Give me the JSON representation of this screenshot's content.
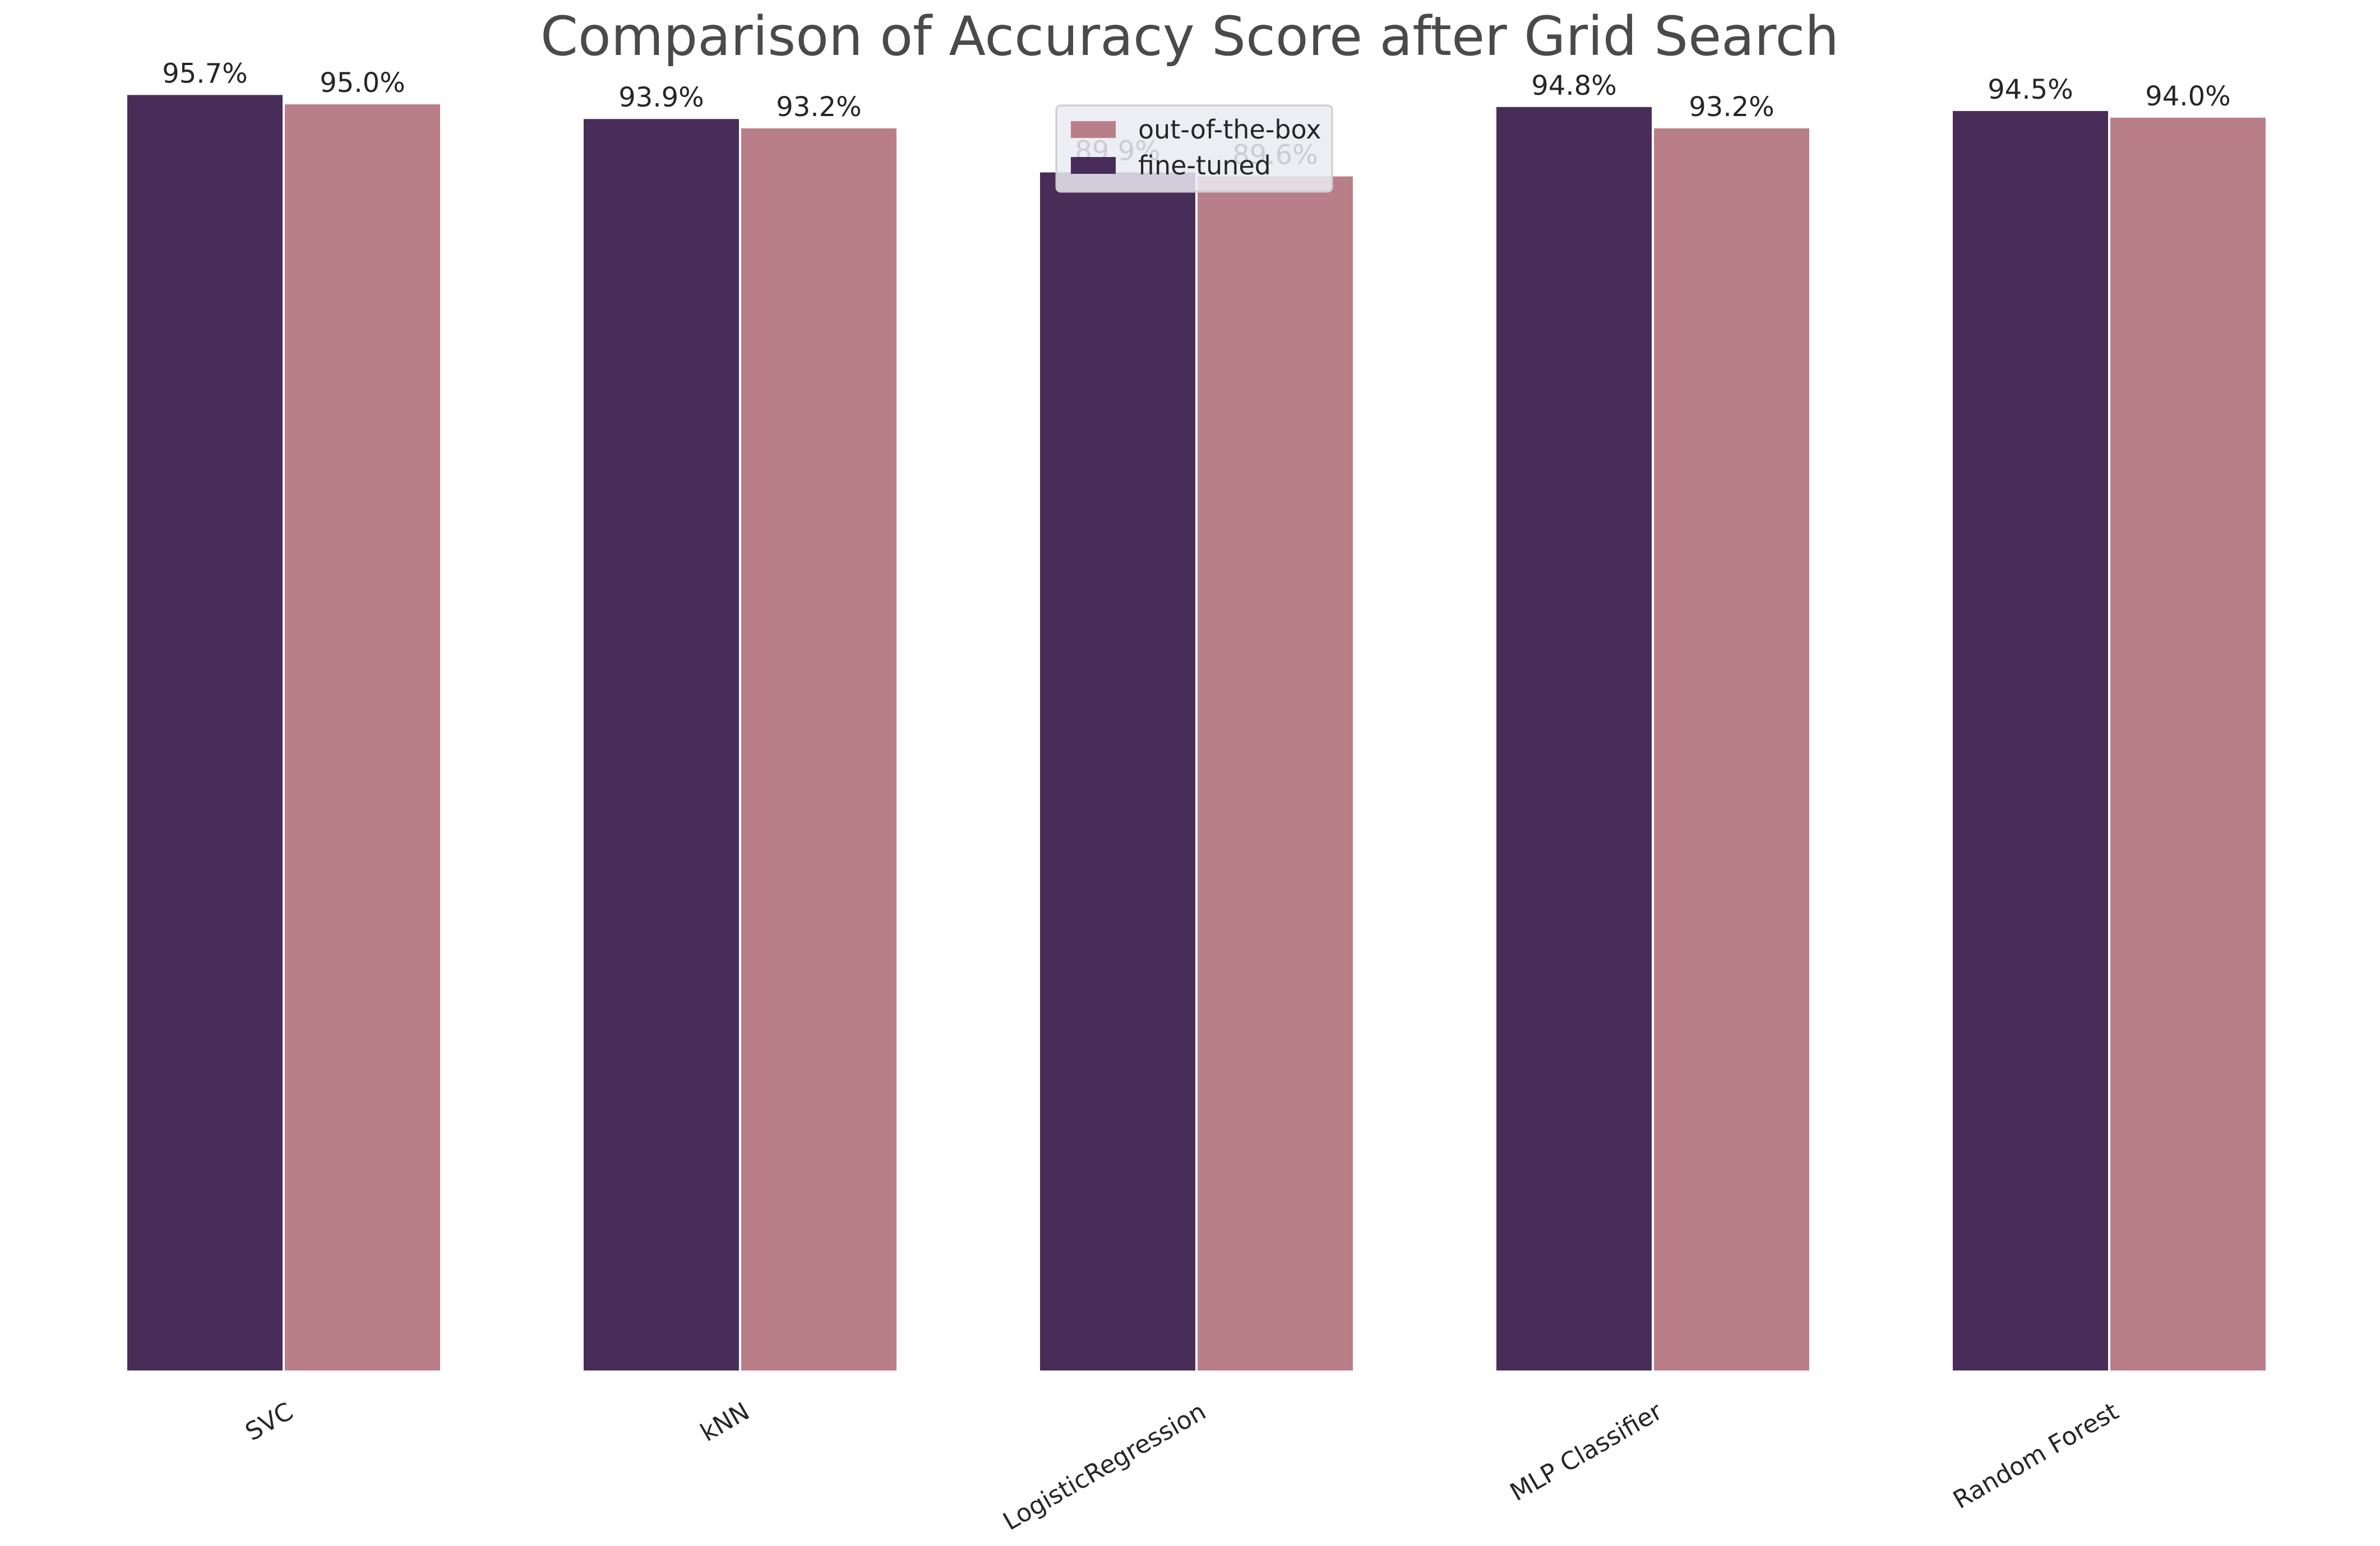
{
  "chart_data": {
    "type": "bar",
    "title": "Comparison of Accuracy Score after Grid Search",
    "xlabel": "",
    "ylabel": "",
    "categories": [
      "SVC",
      "kNN",
      "LogisticRegression",
      "MLP Classifier",
      "Random Forest"
    ],
    "series": [
      {
        "name": "fine-tuned",
        "values": [
          95.7,
          93.9,
          89.9,
          94.8,
          94.5
        ],
        "labels": [
          "95.7%",
          "93.9%",
          "89.9%",
          "94.8%",
          "94.5%"
        ],
        "color": "#472d57"
      },
      {
        "name": "out-of-the-box",
        "values": [
          95.0,
          93.2,
          89.6,
          93.2,
          94.0
        ],
        "labels": [
          "95.0%",
          "93.2%",
          "89.6%",
          "93.2%",
          "94.0%"
        ],
        "color": "#b97f89"
      }
    ],
    "legend_order": [
      "out-of-the-box",
      "fine-tuned"
    ],
    "legend_position": "upper-center",
    "ylim": [
      0,
      100
    ],
    "grid": false,
    "tick_label_rotation": 30
  }
}
